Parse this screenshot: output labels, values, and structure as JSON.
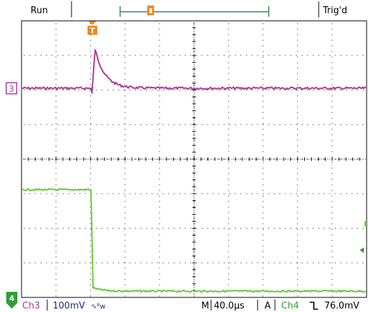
{
  "top_bar": {
    "run_state": "Run",
    "trigger_state": "Trig'd",
    "trigger_marker_label": "T"
  },
  "channels": {
    "ch3": {
      "marker_label": "3",
      "color": "#b0399a"
    },
    "ch4": {
      "marker_label": "4",
      "color": "#6cc83a"
    }
  },
  "bottom_bar": {
    "ch3_label": "Ch3",
    "ch3_scale": "100mV",
    "ch3_coupling_glyph": "∿ᴮw",
    "timebase_prefix": "M",
    "timebase_value": "40.0μs",
    "acq_mode": "A",
    "trigger_source": "Ch4",
    "trigger_slope_glyph": "⅂",
    "trigger_level": "76.0mV"
  },
  "colors": {
    "trigger_accent": "#f08a24",
    "record_bar": "#2f8a4a",
    "ch3_text": "#b0399a",
    "ch4_text": "#2ea034",
    "scale_text": "#28287a",
    "grid": "#000000"
  }
}
